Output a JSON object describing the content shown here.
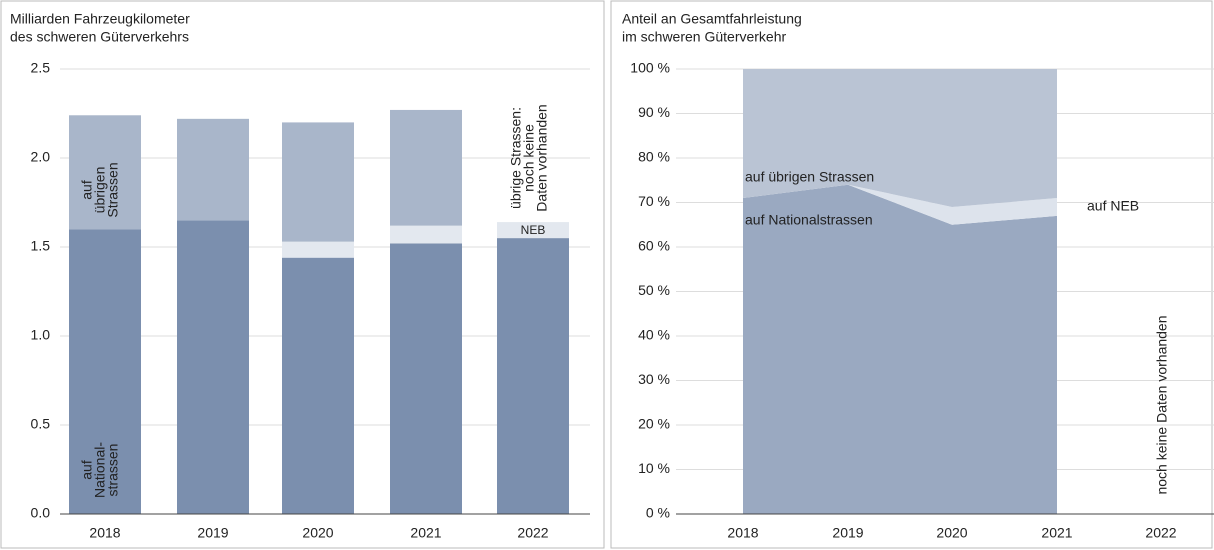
{
  "chart_data": [
    {
      "type": "bar",
      "stacked": true,
      "title": [
        "Milliarden Fahrzeugkilometer",
        "des schweren Güterverkehrs"
      ],
      "categories": [
        "2018",
        "2019",
        "2020",
        "2021",
        "2022"
      ],
      "series": [
        {
          "color": "#7b8fae",
          "values": [
            1.6,
            1.65,
            1.44,
            1.52,
            1.55
          ]
        },
        {
          "color": "#e3e8ef",
          "values": [
            0,
            0,
            0.09,
            0.1,
            0.09
          ]
        },
        {
          "color": "#a9b6ca",
          "values": [
            0.64,
            0.57,
            0.67,
            0.65,
            null
          ]
        }
      ],
      "ylim": [
        0,
        2.5
      ],
      "yticks": [
        {
          "value": 0,
          "label": "0.0"
        },
        0.5,
        {
          "value": 1,
          "label": "1.0"
        },
        1.5,
        {
          "value": 2,
          "label": "2.0"
        },
        2.5
      ],
      "grid": true,
      "annotations": [
        [
          "auf",
          "übrigen",
          "Strassen"
        ],
        [
          "auf",
          "National-",
          "strassen"
        ],
        [
          "übrige Strassen:",
          "noch keine",
          "Daten vorhanden"
        ],
        [
          "NEB"
        ]
      ]
    },
    {
      "type": "area",
      "stacked": true,
      "title": [
        "Anteil an Gesamtfahrleistung",
        "im schweren Güterverkehr"
      ],
      "categories": [
        "2018",
        "2019",
        "2020",
        "2021",
        "2022"
      ],
      "series": [
        {
          "color": "#9aa9c1",
          "values": [
            71,
            74,
            65,
            67,
            null
          ]
        },
        {
          "color": "#dde3ec",
          "values": [
            0,
            0,
            4,
            4,
            null
          ]
        },
        {
          "color": "#bac4d4",
          "values": [
            29,
            26,
            31,
            29,
            null
          ]
        }
      ],
      "ylim": [
        0,
        100
      ],
      "yticks": [
        {
          "value": 0,
          "label": "0 %"
        },
        {
          "value": 10,
          "label": "10 %"
        },
        {
          "value": 20,
          "label": "20 %"
        },
        {
          "value": 30,
          "label": "30 %"
        },
        {
          "value": 40,
          "label": "40 %"
        },
        {
          "value": 50,
          "label": "50 %"
        },
        {
          "value": 60,
          "label": "60 %"
        },
        {
          "value": 70,
          "label": "70 %"
        },
        {
          "value": 80,
          "label": "80 %"
        },
        {
          "value": 90,
          "label": "90 %"
        },
        {
          "value": 100,
          "label": "100 %"
        }
      ],
      "grid": true,
      "annotations": [
        [
          "auf übrigen Strassen"
        ],
        [
          "auf Nationalstrassen"
        ],
        [
          "auf NEB"
        ],
        [
          "noch keine Daten vorhanden"
        ]
      ]
    }
  ]
}
